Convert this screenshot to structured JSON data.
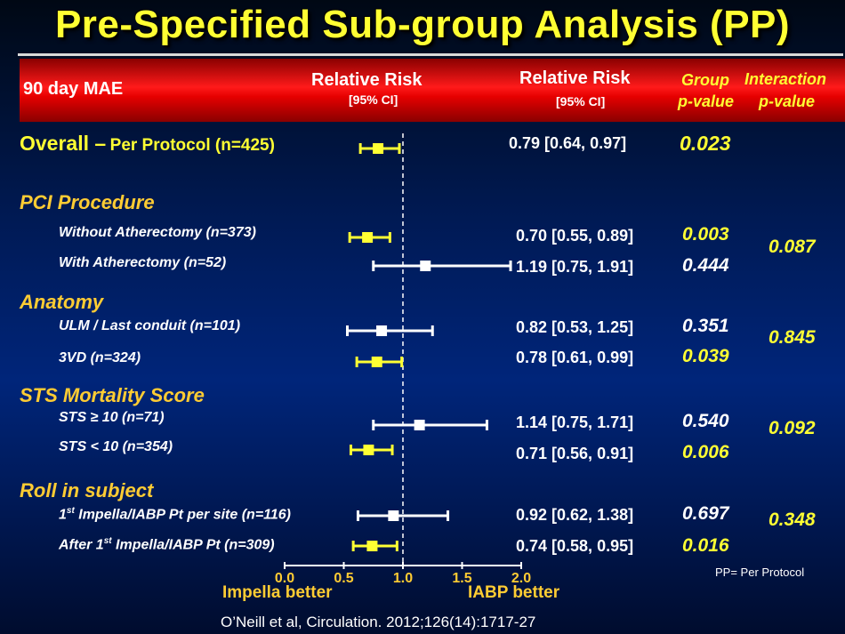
{
  "title": "Pre-Specified Sub-group Analysis (PP)",
  "header": {
    "endpoint": "90 day MAE",
    "rr_col1": "Relative Risk",
    "rr_col1_sub": "[95% CI]",
    "rr_col2": "Relative Risk",
    "rr_col2_sub": "[95% CI]",
    "group_p_1": "Group",
    "group_p_2": "p-value",
    "interaction_p_1": "Interaction",
    "interaction_p_2": "p-value"
  },
  "overall": {
    "label_main": "Overall –",
    "label_rest": "Per Protocol (n=425)",
    "ci_text": "0.79 [0.64, 0.97]",
    "p": "0.023"
  },
  "sections": [
    {
      "title": "PCI Procedure",
      "interaction_p": "0.087"
    },
    {
      "title": "Anatomy",
      "interaction_p": "0.845"
    },
    {
      "title": "STS Mortality Score",
      "interaction_p": "0.092"
    },
    {
      "title": "Roll in subject",
      "interaction_p": "0.348"
    }
  ],
  "rows": [
    {
      "label": "Without Atherectomy (n=373)",
      "ci_text": "0.70 [0.55, 0.89]",
      "p": "0.003"
    },
    {
      "label": "With Atherectomy (n=52)",
      "ci_text": "1.19 [0.75, 1.91]",
      "p": "0.444"
    },
    {
      "label": "ULM / Last conduit (n=101)",
      "ci_text": "0.82 [0.53, 1.25]",
      "p": "0.351"
    },
    {
      "label": "3VD (n=324)",
      "ci_text": "0.78 [0.61, 0.99]",
      "p": "0.039"
    },
    {
      "label": "STS ≥ 10 (n=71)",
      "ci_text": "1.14 [0.75, 1.71]",
      "p": "0.540"
    },
    {
      "label": "STS < 10 (n=354)",
      "ci_text": "0.71 [0.56, 0.91]",
      "p": "0.006"
    },
    {
      "label_pre": "1",
      "label_sup": "st",
      "label_post": " Impella/IABP Pt per site (n=116)",
      "ci_text": "0.92 [0.62, 1.38]",
      "p": "0.697"
    },
    {
      "label_pre": "After 1",
      "label_sup": "st",
      "label_post": " Impella/IABP Pt (n=309)",
      "ci_text": "0.74 [0.58, 0.95]",
      "p": "0.016"
    }
  ],
  "axis": {
    "ticks": [
      "0.0",
      "0.5",
      "1.0",
      "1.5",
      "2.0"
    ],
    "left_label": "Impella better",
    "right_label": "IABP better"
  },
  "footnote": "PP= Per Protocol",
  "citation": "O’Neill et al, Circulation. 2012;126(14):1717-27",
  "colors": {
    "significant": "#ffff33",
    "nonsignificant": "#ffffff",
    "section": "#ffcc33",
    "header_bar": "#e60000"
  },
  "chart_data": {
    "type": "forest",
    "xlim": [
      0.0,
      2.0
    ],
    "reference_line": 1.0,
    "xticks": [
      0.0,
      0.5,
      1.0,
      1.5,
      2.0
    ],
    "series": [
      {
        "name": "Overall – Per Protocol (n=425)",
        "rr": 0.79,
        "lo": 0.64,
        "hi": 0.97,
        "significant": true
      },
      {
        "name": "Without Atherectomy (n=373)",
        "rr": 0.7,
        "lo": 0.55,
        "hi": 0.89,
        "significant": true
      },
      {
        "name": "With Atherectomy (n=52)",
        "rr": 1.19,
        "lo": 0.75,
        "hi": 1.91,
        "significant": false
      },
      {
        "name": "ULM / Last conduit (n=101)",
        "rr": 0.82,
        "lo": 0.53,
        "hi": 1.25,
        "significant": false
      },
      {
        "name": "3VD (n=324)",
        "rr": 0.78,
        "lo": 0.61,
        "hi": 0.99,
        "significant": true
      },
      {
        "name": "STS ≥ 10 (n=71)",
        "rr": 1.14,
        "lo": 0.75,
        "hi": 1.71,
        "significant": false
      },
      {
        "name": "STS < 10 (n=354)",
        "rr": 0.71,
        "lo": 0.56,
        "hi": 0.91,
        "significant": true
      },
      {
        "name": "1st Impella/IABP Pt per site (n=116)",
        "rr": 0.92,
        "lo": 0.62,
        "hi": 1.38,
        "significant": false
      },
      {
        "name": "After 1st Impella/IABP Pt (n=309)",
        "rr": 0.74,
        "lo": 0.58,
        "hi": 0.95,
        "significant": true
      }
    ]
  }
}
